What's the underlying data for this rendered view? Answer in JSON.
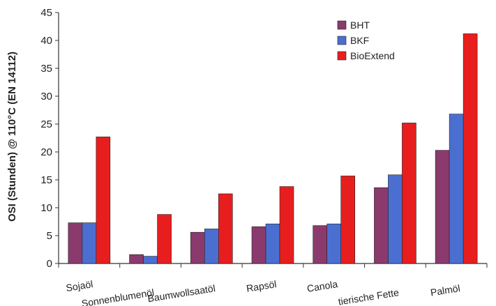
{
  "chart_data": {
    "type": "bar",
    "categories": [
      "Sojaöl",
      "Sonnenblumenöl",
      "Baumwollsaatöl",
      "Rapsöl",
      "Canola",
      "tierische Fette",
      "Palmöl"
    ],
    "series": [
      {
        "name": "BHT",
        "color": "#8b3a6e",
        "values": [
          7.3,
          1.6,
          5.6,
          6.6,
          6.8,
          13.6,
          20.3
        ]
      },
      {
        "name": "BKF",
        "color": "#4a6fd1",
        "values": [
          7.3,
          1.3,
          6.2,
          7.1,
          7.1,
          15.9,
          26.8
        ]
      },
      {
        "name": "BioExtend",
        "color": "#e81e1e",
        "values": [
          22.7,
          8.8,
          12.5,
          13.8,
          15.7,
          25.2,
          41.2
        ]
      }
    ],
    "ylabel": "OSI (Stunden) @ 110°C (EN 14112)",
    "ylim": [
      0,
      45
    ],
    "yticks": [
      0,
      5,
      10,
      15,
      20,
      25,
      30,
      35,
      40,
      45
    ],
    "grid": false,
    "legend": "top-right"
  }
}
